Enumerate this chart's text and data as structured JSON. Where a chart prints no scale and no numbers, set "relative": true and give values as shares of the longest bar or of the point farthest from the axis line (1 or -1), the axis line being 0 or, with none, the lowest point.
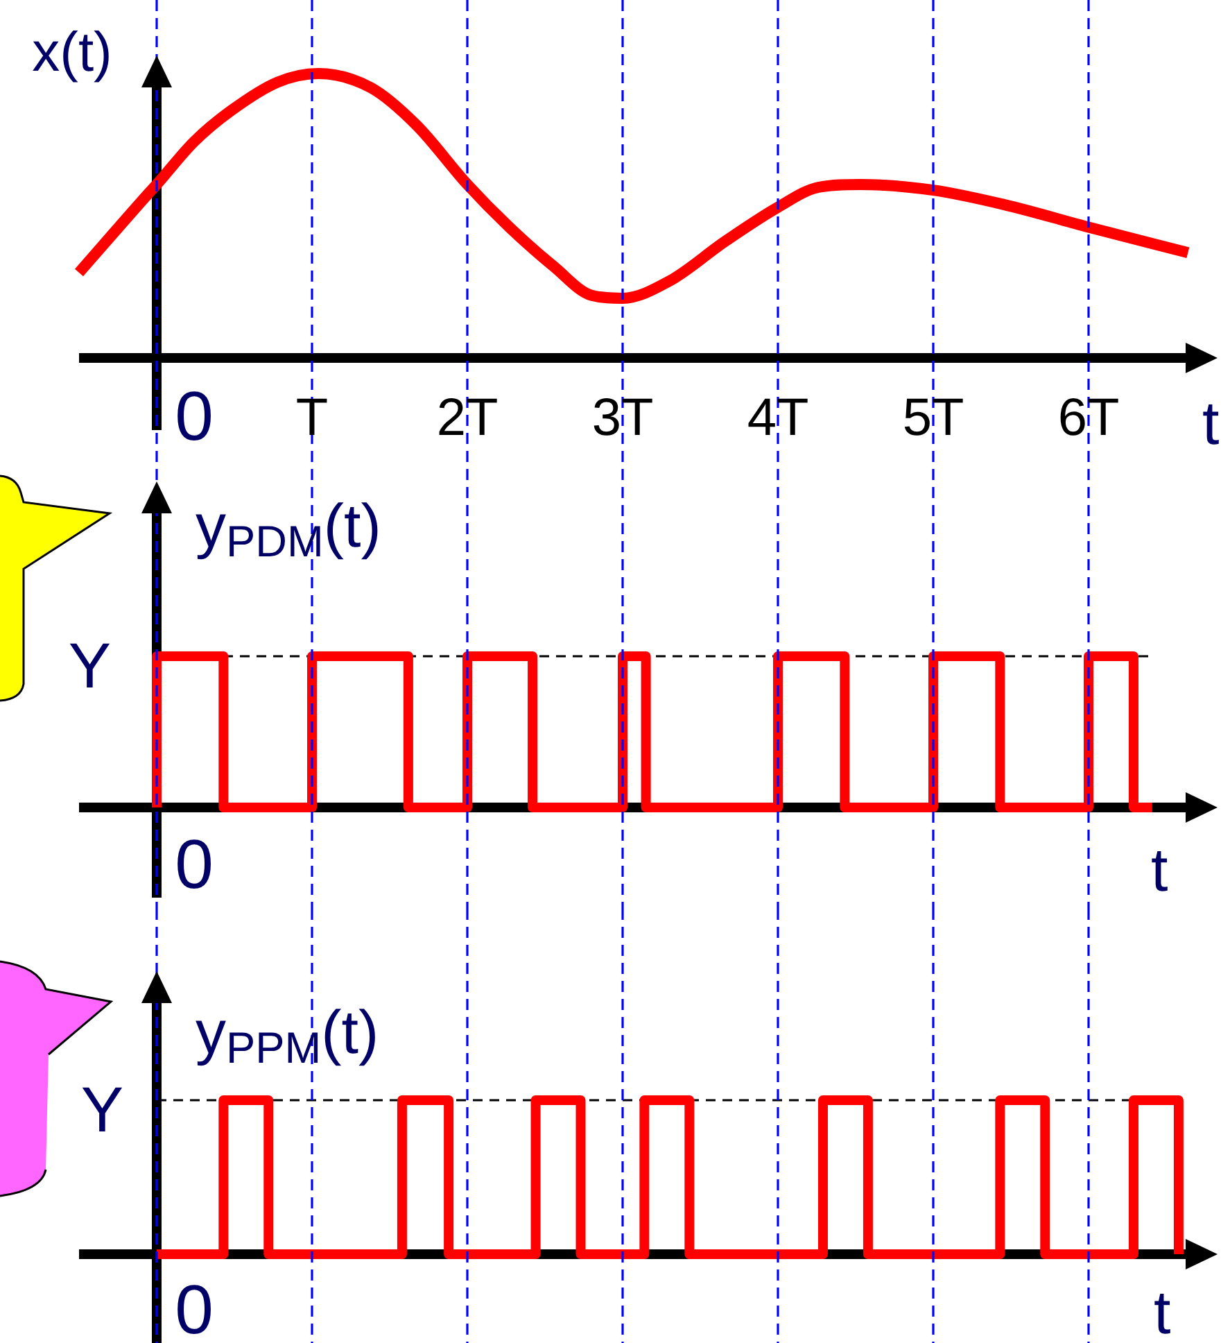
{
  "chart_data": [
    {
      "type": "line",
      "xlabel": "t",
      "ylabel": "x(t)",
      "relative": true,
      "grid": "x",
      "xlim": [
        -0.5,
        6.76
      ],
      "xticks": [
        {
          "value": 0,
          "label": "0"
        },
        {
          "value": 1,
          "label": "T"
        },
        {
          "value": 2,
          "label": "2T"
        },
        {
          "value": 3,
          "label": "3T"
        },
        {
          "value": 4,
          "label": "4T"
        },
        {
          "value": 5,
          "label": "5T"
        },
        {
          "value": 6,
          "label": "6T"
        }
      ],
      "x": [
        -0.5,
        -0.05,
        0,
        0.24,
        0.48,
        0.78,
        1.04,
        1.38,
        1.67,
        2,
        2.27,
        2.56,
        2.8,
        3,
        3.3,
        3.66,
        4,
        4.26,
        4.53,
        5,
        5.45,
        6,
        6.64
      ],
      "series": [
        {
          "color": "#ff0000",
          "values": [
            0.3,
            0.58,
            0.61,
            0.76,
            0.87,
            0.97,
            1,
            0.95,
            0.82,
            0.61,
            0.46,
            0.32,
            0.22,
            0.21,
            0.27,
            0.41,
            0.53,
            0.6,
            0.61,
            0.59,
            0.54,
            0.46,
            0.37
          ]
        }
      ]
    },
    {
      "type": "step",
      "xlabel": "t",
      "ylabel": "y$_{PDM}$(t)",
      "relative": true,
      "grid": "x",
      "tick_labels": false,
      "xlim": [
        -0.5,
        6.76
      ],
      "xticks": [
        0,
        1,
        2,
        3,
        4,
        5,
        6
      ],
      "annotations": [
        "0"
      ],
      "ref_lines": [
        {
          "axis": "y",
          "value": 1,
          "label": "Y",
          "color": "#000000",
          "line_style": "dashed"
        }
      ],
      "x": [
        0,
        0,
        0.43,
        1,
        1.62,
        2,
        2.42,
        3,
        3.15,
        4,
        4.43,
        5,
        5.43,
        6,
        6.29,
        6.41
      ],
      "series": [
        {
          "color": "#ff0000",
          "values": [
            0,
            1,
            0,
            1,
            0,
            1,
            0,
            1,
            0,
            1,
            0,
            1,
            0,
            1,
            0,
            0
          ]
        }
      ]
    },
    {
      "type": "step",
      "xlabel": "t",
      "ylabel": "y$_{PPM}$(t)",
      "relative": true,
      "grid": "x",
      "tick_labels": false,
      "xlim": [
        -0.5,
        6.76
      ],
      "xticks": [
        0,
        1,
        2,
        3,
        4,
        5,
        6
      ],
      "annotations": [
        "0"
      ],
      "ref_lines": [
        {
          "axis": "y",
          "value": 1,
          "label": "Y",
          "color": "#000000",
          "line_style": "dashed"
        }
      ],
      "x": [
        0,
        0.43,
        0.72,
        1.58,
        1.88,
        2.44,
        2.73,
        3.14,
        3.43,
        4.29,
        4.58,
        5.43,
        5.72,
        6.29,
        6.58
      ],
      "series": [
        {
          "color": "#ff0000",
          "values": [
            0,
            1,
            0,
            1,
            0,
            1,
            0,
            1,
            0,
            1,
            0,
            1,
            0,
            1,
            0
          ]
        }
      ]
    }
  ]
}
